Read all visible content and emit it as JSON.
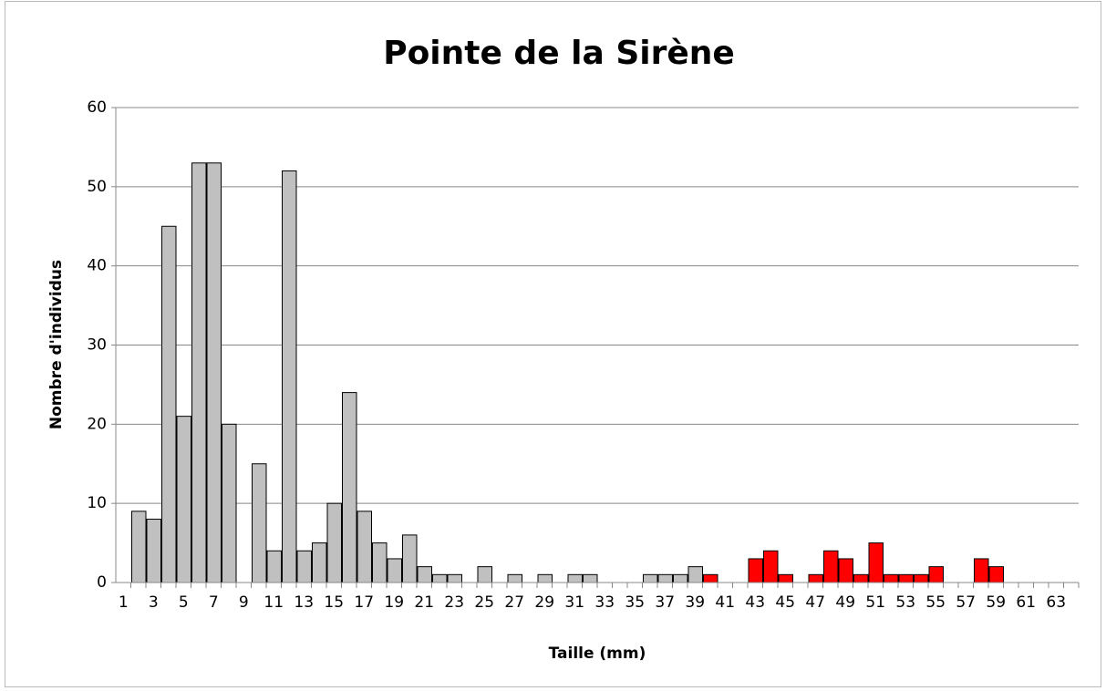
{
  "chart_data": {
    "type": "bar",
    "title": "Pointe de la Sirène",
    "x_label": "Taille (mm)",
    "y_label": "Nombre d'individus",
    "categories": [
      1,
      null,
      3,
      null,
      5,
      null,
      7,
      null,
      9,
      null,
      11,
      null,
      13,
      null,
      15,
      null,
      17,
      null,
      19,
      null,
      21,
      null,
      23,
      null,
      25,
      null,
      27,
      null,
      29,
      null,
      31,
      null,
      33,
      null,
      35,
      null,
      37,
      null,
      39,
      null,
      41,
      null,
      43,
      null,
      45,
      null,
      47,
      null,
      49,
      null,
      51,
      null,
      53,
      null,
      55,
      null,
      57,
      null,
      59,
      null,
      61,
      null,
      63,
      null
    ],
    "values": [
      0,
      9,
      8,
      45,
      21,
      53,
      53,
      20,
      0,
      15,
      4,
      52,
      4,
      5,
      10,
      24,
      9,
      5,
      3,
      6,
      2,
      1,
      1,
      0,
      2,
      0,
      1,
      0,
      1,
      0,
      1,
      1,
      0,
      0,
      0,
      1,
      1,
      1,
      2,
      1,
      0,
      0,
      3,
      4,
      1,
      0,
      1,
      4,
      3,
      1,
      5,
      1,
      1,
      1,
      2,
      0,
      0,
      3,
      2,
      0,
      0,
      0,
      0,
      0
    ],
    "colors": [
      "#c0c0c0",
      "#c0c0c0",
      "#c0c0c0",
      "#c0c0c0",
      "#c0c0c0",
      "#c0c0c0",
      "#c0c0c0",
      "#c0c0c0",
      "#c0c0c0",
      "#c0c0c0",
      "#c0c0c0",
      "#c0c0c0",
      "#c0c0c0",
      "#c0c0c0",
      "#c0c0c0",
      "#c0c0c0",
      "#c0c0c0",
      "#c0c0c0",
      "#c0c0c0",
      "#c0c0c0",
      "#c0c0c0",
      "#c0c0c0",
      "#c0c0c0",
      "#c0c0c0",
      "#c0c0c0",
      "#c0c0c0",
      "#c0c0c0",
      "#c0c0c0",
      "#c0c0c0",
      "#c0c0c0",
      "#c0c0c0",
      "#c0c0c0",
      "#c0c0c0",
      "#c0c0c0",
      "#c0c0c0",
      "#c0c0c0",
      "#c0c0c0",
      "#c0c0c0",
      "#c0c0c0",
      "#ff0000",
      "#ff0000",
      "#ff0000",
      "#ff0000",
      "#ff0000",
      "#ff0000",
      "#ff0000",
      "#ff0000",
      "#ff0000",
      "#ff0000",
      "#ff0000",
      "#ff0000",
      "#ff0000",
      "#ff0000",
      "#ff0000",
      "#ff0000",
      "#ff0000",
      "#ff0000",
      "#ff0000",
      "#ff0000",
      "#ff0000",
      "#ff0000",
      "#ff0000",
      "#ff0000",
      "#ff0000"
    ],
    "ylim": [
      0,
      60
    ],
    "yticks": [
      0,
      10,
      20,
      30,
      40,
      50,
      60
    ],
    "grid": true
  }
}
